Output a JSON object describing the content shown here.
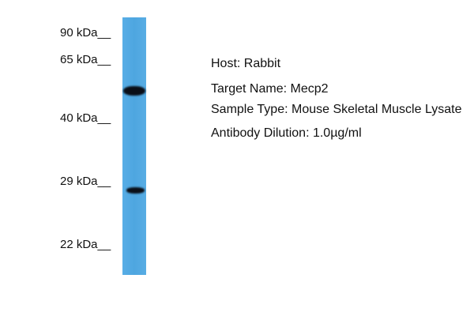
{
  "markers": [
    "90 kDa__",
    "65 kDa__",
    "40 kDa__",
    "29 kDa__",
    "22 kDa__"
  ],
  "lane_color": "#4fa6e0",
  "bands": [
    {
      "approx_kda": "~52",
      "intensity": "strong"
    },
    {
      "approx_kda": "~27",
      "intensity": "strong"
    }
  ],
  "info": {
    "host": "Host: Rabbit",
    "target": "Target Name: Mecp2",
    "sample": "Sample Type: Mouse Skeletal Muscle Lysate",
    "dilution": "Antibody Dilution: 1.0µg/ml"
  }
}
